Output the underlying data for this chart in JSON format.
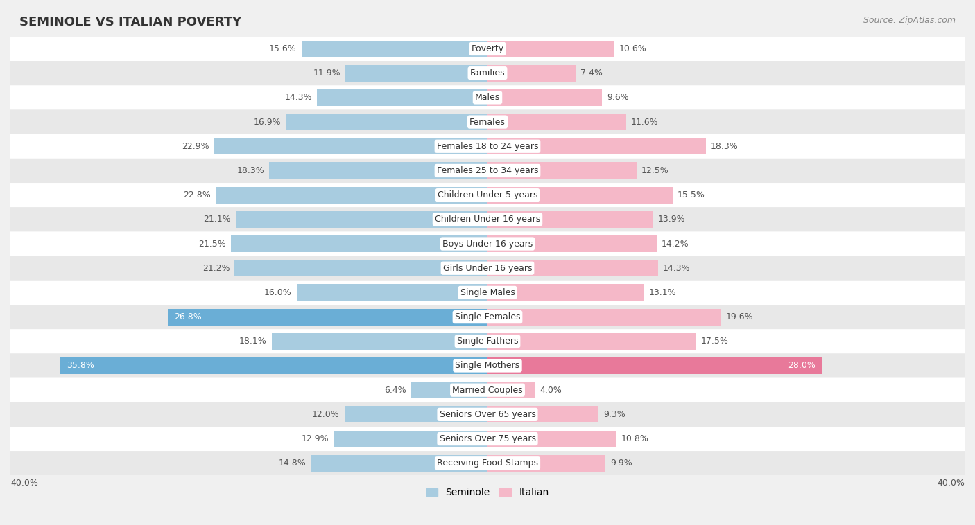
{
  "title": "SEMINOLE VS ITALIAN POVERTY",
  "source": "Source: ZipAtlas.com",
  "categories": [
    "Poverty",
    "Families",
    "Males",
    "Females",
    "Females 18 to 24 years",
    "Females 25 to 34 years",
    "Children Under 5 years",
    "Children Under 16 years",
    "Boys Under 16 years",
    "Girls Under 16 years",
    "Single Males",
    "Single Females",
    "Single Fathers",
    "Single Mothers",
    "Married Couples",
    "Seniors Over 65 years",
    "Seniors Over 75 years",
    "Receiving Food Stamps"
  ],
  "seminole_values": [
    15.6,
    11.9,
    14.3,
    16.9,
    22.9,
    18.3,
    22.8,
    21.1,
    21.5,
    21.2,
    16.0,
    26.8,
    18.1,
    35.8,
    6.4,
    12.0,
    12.9,
    14.8
  ],
  "italian_values": [
    10.6,
    7.4,
    9.6,
    11.6,
    18.3,
    12.5,
    15.5,
    13.9,
    14.2,
    14.3,
    13.1,
    19.6,
    17.5,
    28.0,
    4.0,
    9.3,
    10.8,
    9.9
  ],
  "seminole_color": "#a8cce0",
  "italian_color": "#f5b8c8",
  "seminole_highlight_rows": [
    11,
    13
  ],
  "italian_highlight_rows": [
    13
  ],
  "seminole_highlight_color": "#6aaed6",
  "italian_highlight_color": "#e8799a",
  "background_color": "#f0f0f0",
  "row_bg_white": "#ffffff",
  "row_bg_gray": "#e8e8e8",
  "axis_limit": 40.0,
  "bar_height": 0.68,
  "label_fontsize": 9.0,
  "cat_fontsize": 9.0,
  "legend_items": [
    "Seminole",
    "Italian"
  ]
}
